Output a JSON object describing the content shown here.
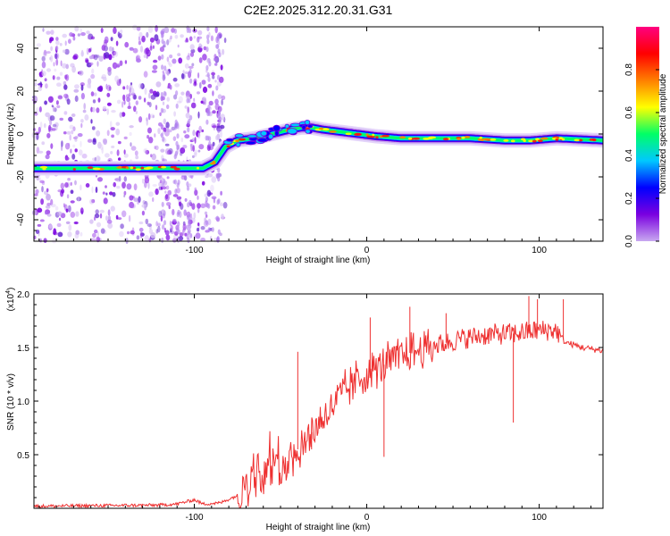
{
  "title": "C2E2.2025.312.20.31.G31",
  "chart_data": [
    {
      "type": "heatmap",
      "name": "spectrogram",
      "xlabel": "Height of straight line (km)",
      "ylabel": "Frequency (Hz)",
      "xlim": [
        -193,
        137
      ],
      "ylim": [
        -50,
        50
      ],
      "xticks": [
        -100,
        0,
        100
      ],
      "xtick_labels": [
        "-100",
        "0",
        "100"
      ],
      "yticks": [
        -40,
        -20,
        0,
        20,
        40
      ],
      "ytick_labels": [
        "-40",
        "-20",
        "0",
        "20",
        "40"
      ],
      "colorbar": {
        "label": "Normalized spectral amplitude",
        "range": [
          0,
          1
        ],
        "ticks": [
          0.0,
          0.2,
          0.4,
          0.6,
          0.8
        ],
        "tick_labels": [
          "0.0",
          "0.2",
          "0.4",
          "0.6",
          "0.8"
        ],
        "colors": [
          "#c8a8f0",
          "#7a00e0",
          "#0000ff",
          "#00c8ff",
          "#00ff66",
          "#ffff00",
          "#ff7f00",
          "#ff0000",
          "#ff0080"
        ]
      },
      "ridge": {
        "x": [
          -193,
          -160,
          -145,
          -130,
          -110,
          -95,
          -88,
          -82,
          -75,
          -65,
          -55,
          -45,
          -38,
          -32,
          -25,
          -15,
          -5,
          5,
          20,
          40,
          60,
          80,
          95,
          110,
          137
        ],
        "y": [
          -16,
          -16,
          -16,
          -16,
          -16,
          -16,
          -13,
          -6,
          -3,
          -2,
          0,
          2,
          3,
          3,
          2,
          1,
          0,
          -1,
          -2,
          -2,
          -2,
          -3,
          -3,
          -2,
          -3
        ]
      }
    },
    {
      "type": "line",
      "name": "snr",
      "xlabel": "Height of straight line (km)",
      "ylabel": "SNR (10 * v/v)",
      "multiplier": "(x10",
      "multiplier_exp": "4",
      "multiplier_close": ")",
      "xlim": [
        -193,
        137
      ],
      "ylim": [
        0,
        2.0
      ],
      "xticks": [
        -100,
        0,
        100
      ],
      "xtick_labels": [
        "-100",
        "0",
        "100"
      ],
      "yticks": [
        0.5,
        1.0,
        1.5,
        2.0
      ],
      "ytick_labels": [
        "0.5",
        "1.0",
        "1.5",
        "2.0"
      ],
      "color": "#ee3030",
      "envelope": {
        "x": [
          -193,
          -120,
          -110,
          -100,
          -95,
          -85,
          -75,
          -65,
          -55,
          -45,
          -35,
          -25,
          -15,
          -5,
          5,
          15,
          25,
          40,
          55,
          70,
          85,
          100,
          110,
          115,
          125,
          137
        ],
        "y": [
          0.02,
          0.03,
          0.04,
          0.08,
          0.04,
          0.05,
          0.12,
          0.25,
          0.35,
          0.45,
          0.65,
          0.85,
          1.05,
          1.2,
          1.3,
          1.38,
          1.45,
          1.52,
          1.58,
          1.62,
          1.63,
          1.66,
          1.66,
          1.55,
          1.5,
          1.47
        ]
      },
      "spikes": [
        {
          "x": -40,
          "y": 1.46
        },
        {
          "x": -32,
          "y": 0.55
        },
        {
          "x": 2,
          "y": 1.78
        },
        {
          "x": 10,
          "y": 0.48
        },
        {
          "x": 25,
          "y": 1.88
        },
        {
          "x": 46,
          "y": 1.82
        },
        {
          "x": 85,
          "y": 0.8
        },
        {
          "x": 94,
          "y": 1.98
        },
        {
          "x": 99,
          "y": 1.95
        },
        {
          "x": 114,
          "y": 1.95
        }
      ]
    }
  ]
}
